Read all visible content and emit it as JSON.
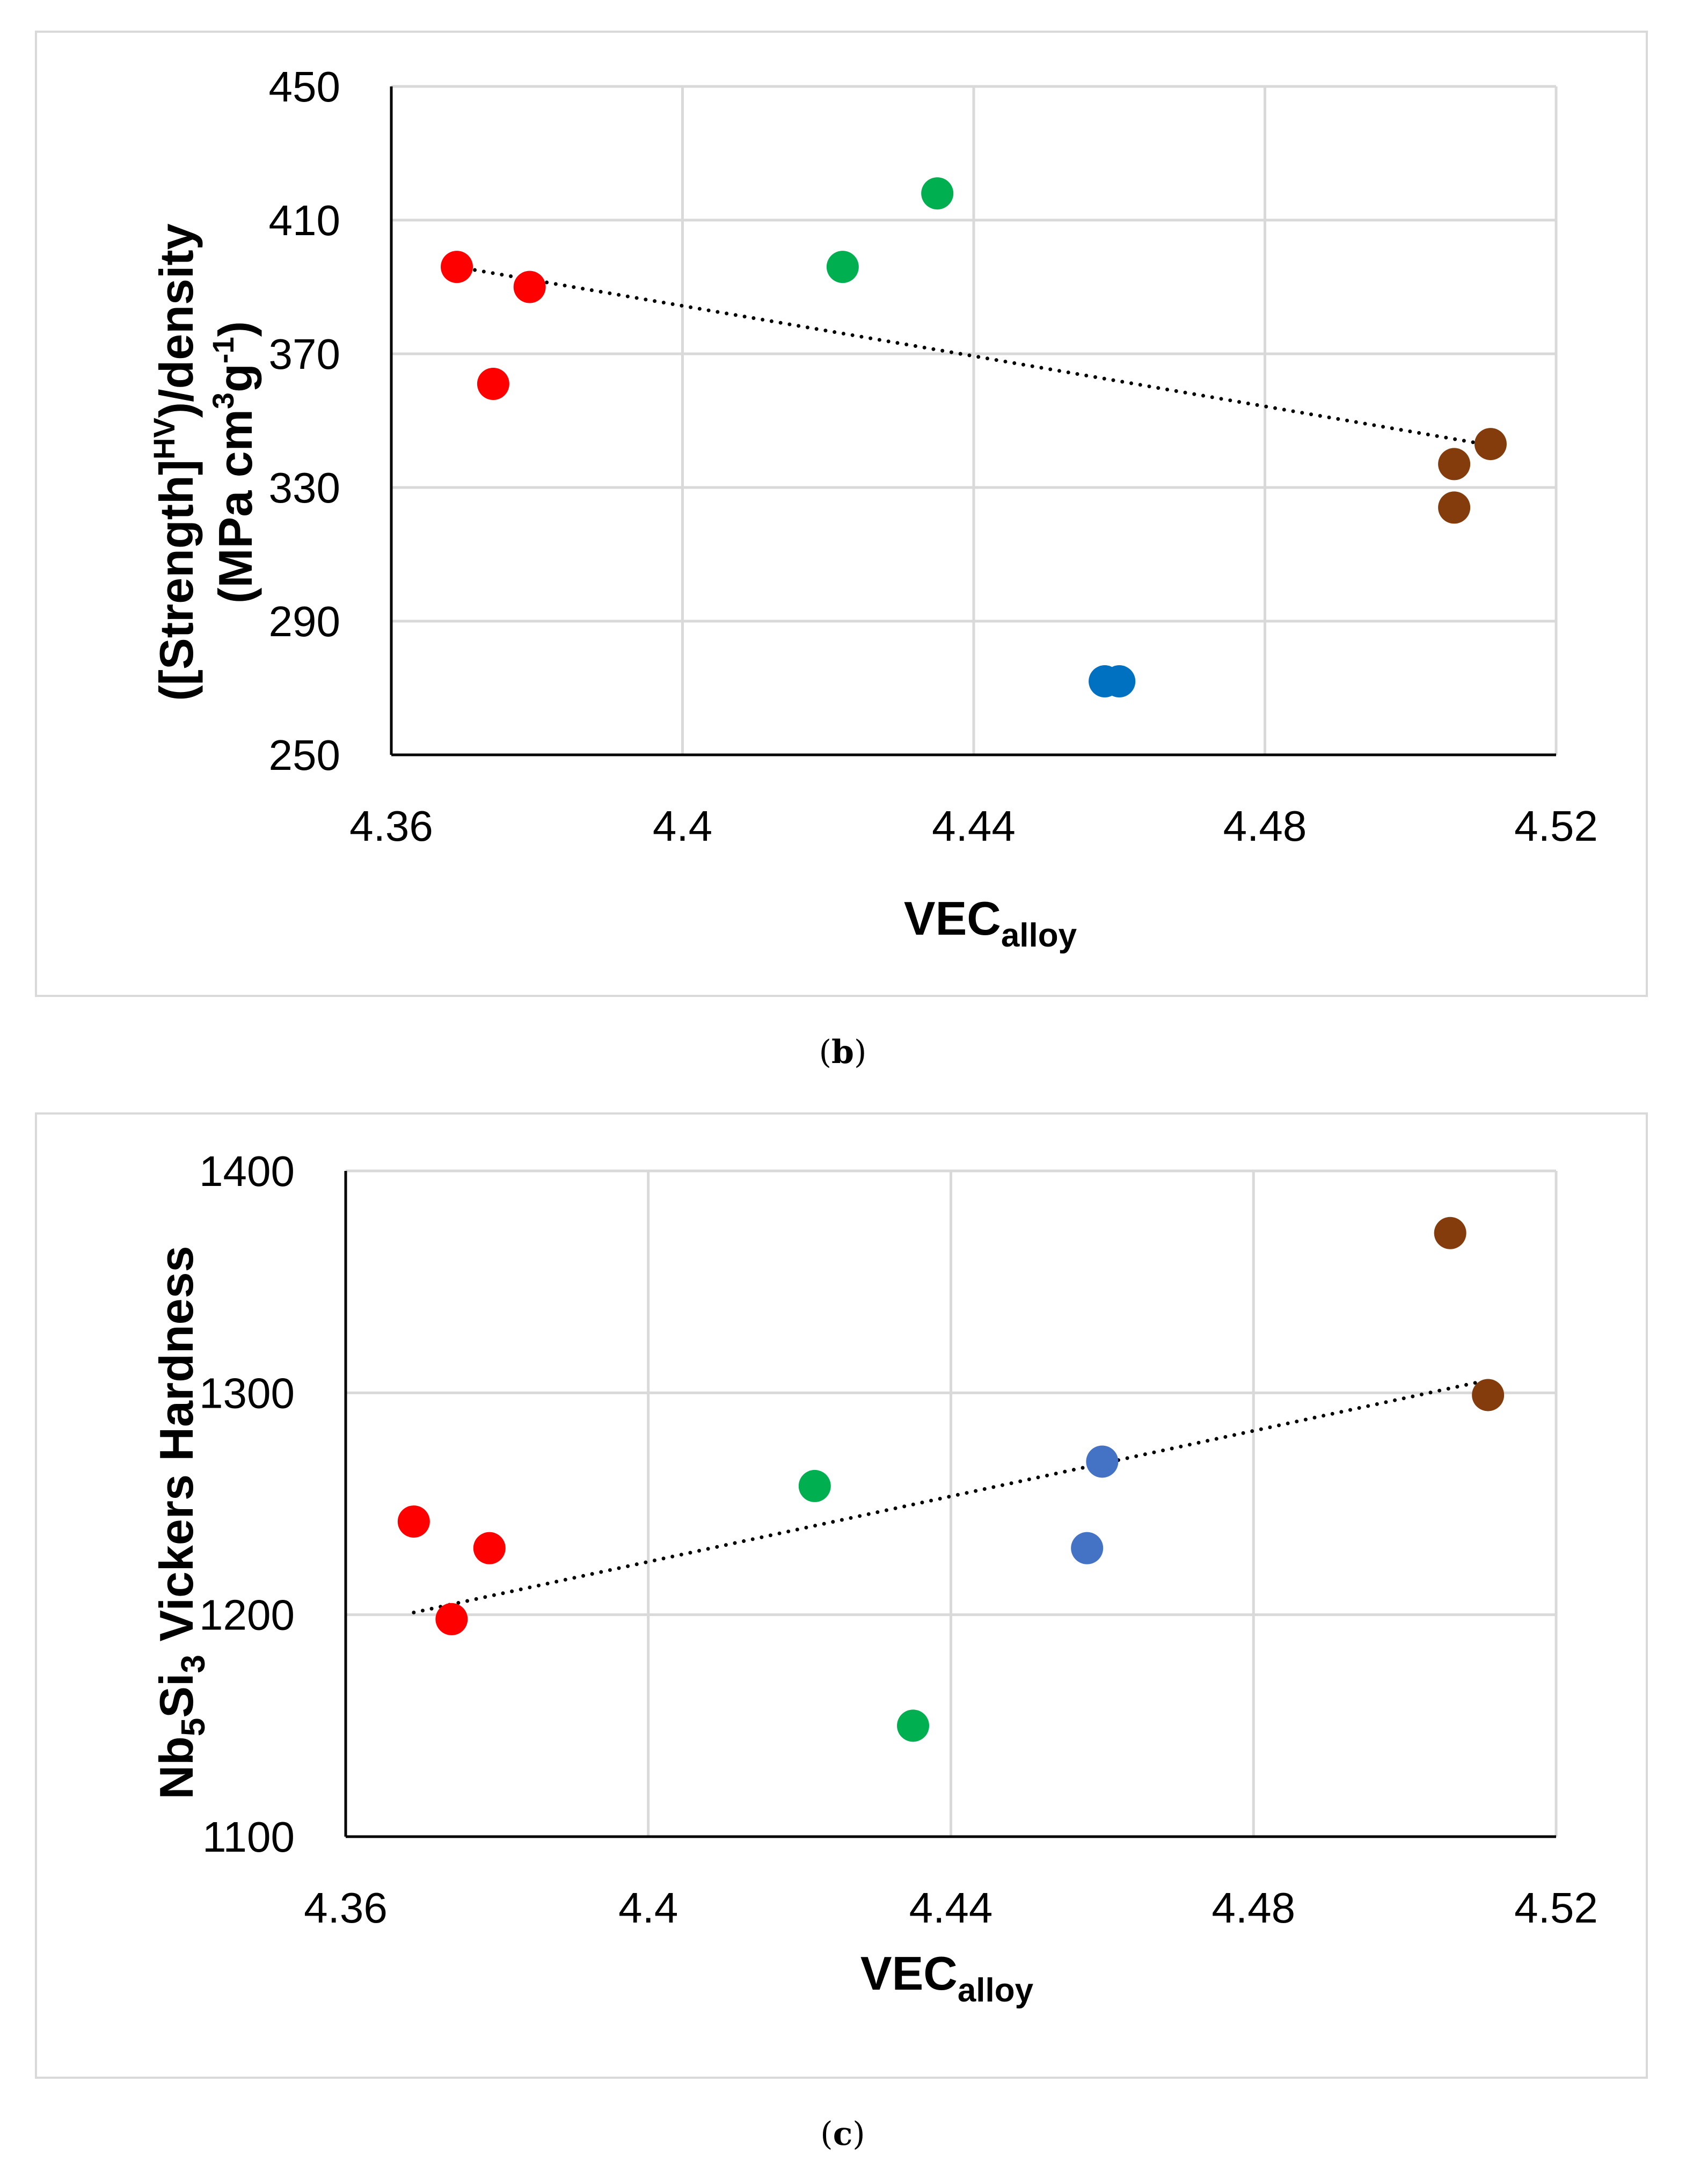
{
  "colors": {
    "red": "#ff0000",
    "green": "#00b050",
    "blue_b": "#0070c0",
    "blue_c": "#4472c4",
    "brown": "#843c0c",
    "gridline": "#d9d9d9",
    "axis": "#000000"
  },
  "chart_data": [
    {
      "panel": "b",
      "type": "scatter",
      "caption_open": "(",
      "caption_letter": "b",
      "caption_close": ")",
      "x_title": {
        "main": "VEC",
        "sub": "alloy"
      },
      "y_title": {
        "line1_a": "([Strength]",
        "line1_sup": "HV",
        "line1_b": ")/density",
        "line2_a": "(MPa cm",
        "line2_sup1": "3",
        "line2_b": "g",
        "line2_sup2": "-1",
        "line2_c": ")"
      },
      "xlim": [
        4.36,
        4.52
      ],
      "ylim": [
        250,
        450
      ],
      "x_ticks": [
        4.36,
        4.4,
        4.44,
        4.48,
        4.52
      ],
      "x_tick_labels": [
        "4.36",
        "4.4",
        "4.44",
        "4.48",
        "4.52"
      ],
      "y_ticks": [
        250,
        290,
        330,
        370,
        410,
        450
      ],
      "y_tick_labels": [
        "250",
        "290",
        "330",
        "370",
        "410",
        "450"
      ],
      "grid": true,
      "series": [
        {
          "name": "red",
          "color_key": "red",
          "points": [
            [
              4.369,
              396
            ],
            [
              4.374,
              361
            ],
            [
              4.379,
              390
            ]
          ]
        },
        {
          "name": "green",
          "color_key": "green",
          "points": [
            [
              4.422,
              396
            ],
            [
              4.435,
              418
            ]
          ]
        },
        {
          "name": "blue",
          "color_key": "blue_b",
          "points": [
            [
              4.458,
              272
            ],
            [
              4.46,
              272
            ]
          ]
        },
        {
          "name": "brown",
          "color_key": "brown",
          "points": [
            [
              4.506,
              337
            ],
            [
              4.506,
              324
            ],
            [
              4.511,
              343
            ]
          ]
        }
      ],
      "trendline": {
        "style": "dotted",
        "points": [
          [
            4.369,
            396
          ],
          [
            4.51,
            343
          ]
        ]
      }
    },
    {
      "panel": "c",
      "type": "scatter",
      "caption_open": "(",
      "caption_letter": "c",
      "caption_close": ")",
      "x_title": {
        "main": "VEC",
        "sub": "alloy"
      },
      "y_title": {
        "a": "Nb",
        "sub1": "5",
        "b": "Si",
        "sub2": "3",
        "c": " Vickers Hardness"
      },
      "xlim": [
        4.36,
        4.52
      ],
      "ylim": [
        1100,
        1400
      ],
      "x_ticks": [
        4.36,
        4.4,
        4.44,
        4.48,
        4.52
      ],
      "x_tick_labels": [
        "4.36",
        "4.4",
        "4.44",
        "4.48",
        "4.52"
      ],
      "y_ticks": [
        1100,
        1200,
        1300,
        1400
      ],
      "y_tick_labels": [
        "1100",
        "1200",
        "1300",
        "1400"
      ],
      "grid": true,
      "series": [
        {
          "name": "red",
          "color_key": "red",
          "points": [
            [
              4.369,
              1242
            ],
            [
              4.374,
              1198
            ],
            [
              4.379,
              1230
            ]
          ]
        },
        {
          "name": "green",
          "color_key": "green",
          "points": [
            [
              4.422,
              1258
            ],
            [
              4.435,
              1150
            ]
          ]
        },
        {
          "name": "blue",
          "color_key": "blue_c",
          "points": [
            [
              4.458,
              1230
            ],
            [
              4.46,
              1269
            ]
          ]
        },
        {
          "name": "brown",
          "color_key": "brown",
          "points": [
            [
              4.506,
              1372
            ],
            [
              4.511,
              1299
            ]
          ]
        }
      ],
      "trendline": {
        "style": "dotted",
        "points": [
          [
            4.369,
            1201
          ],
          [
            4.51,
            1305
          ]
        ]
      }
    }
  ]
}
